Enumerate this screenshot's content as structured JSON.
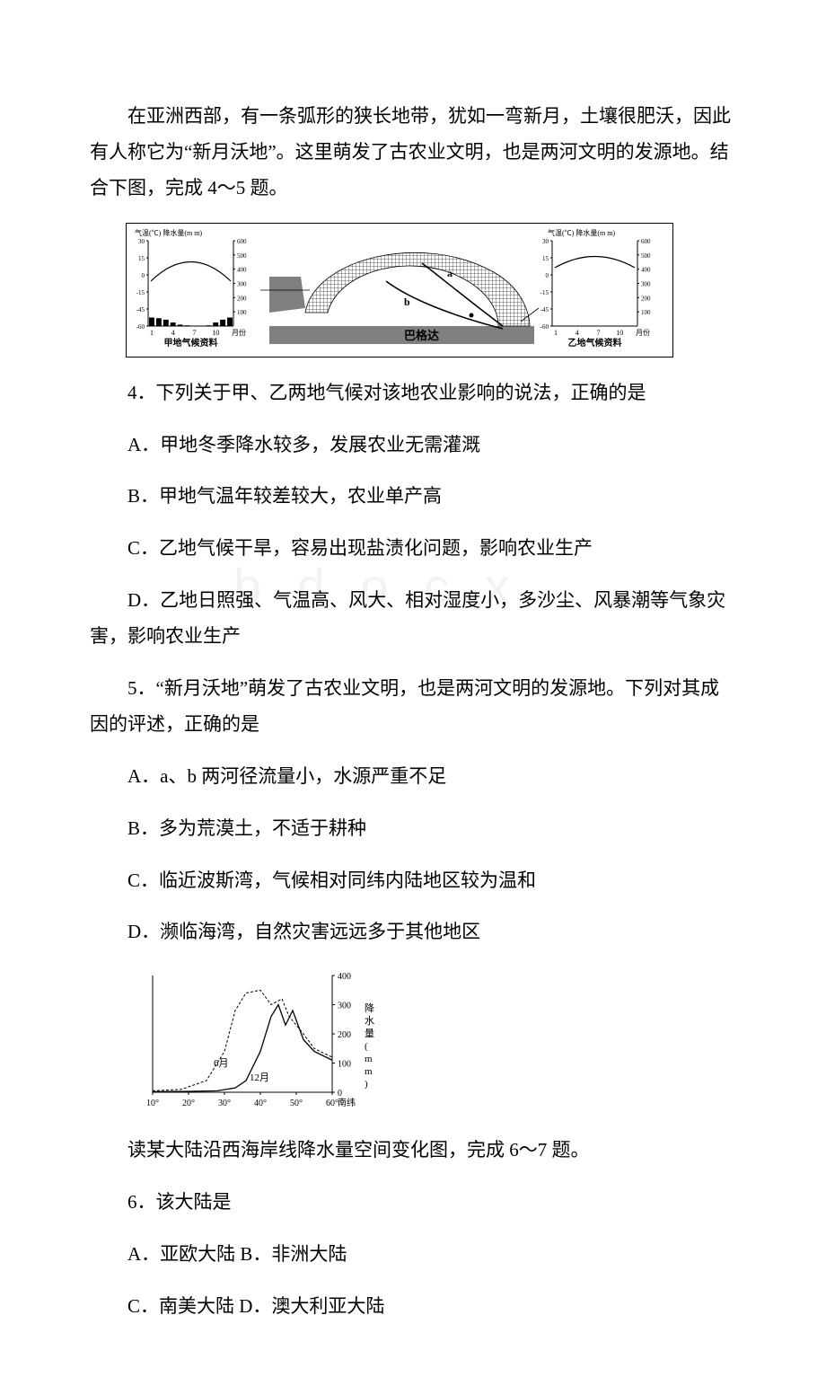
{
  "intro": "在亚洲西部，有一条弧形的狭长地带，犹如一弯新月，土壤很肥沃，因此有人称它为“新月沃地”。这里萌发了古农业文明，也是两河文明的发源地。结合下图，完成 4～5 题。",
  "fig1": {
    "left_panel": {
      "title_top_left": "气温(℃) 降水量(m m)",
      "temp_ticks": [
        "30",
        "15",
        "0",
        "-15",
        "-45",
        "-60"
      ],
      "precip_ticks": [
        "600",
        "500",
        "400",
        "300",
        "200",
        "100"
      ],
      "x_ticks": [
        "1",
        "4",
        "7",
        "10"
      ],
      "x_unit": "月份",
      "caption": "甲地气候资料",
      "bars": [
        60,
        55,
        45,
        25,
        10,
        5,
        2,
        3,
        5,
        25,
        45,
        60
      ],
      "axis_color": "#000000",
      "bar_color": "#000000"
    },
    "right_panel": {
      "title_top_left": "气温(℃) 降水量(m m)",
      "temp_ticks": [
        "30",
        "15",
        "0",
        "-15",
        "-45",
        "-60"
      ],
      "precip_ticks": [
        "600",
        "500",
        "400",
        "300",
        "200",
        "100"
      ],
      "x_ticks": [
        "1",
        "4",
        "7",
        "10"
      ],
      "x_unit": "月份",
      "caption": "乙地气候资料",
      "axis_color": "#000000"
    },
    "map": {
      "river_labels": [
        "a",
        "b"
      ],
      "city": "巴格达",
      "sea_color": "#808080",
      "band_color": "#222222",
      "line_color": "#000000"
    },
    "border_color": "#000000",
    "bg": "#ffffff"
  },
  "q4": {
    "stem": "4．下列关于甲、乙两地气候对该地农业影响的说法，正确的是",
    "A": "A．甲地冬季降水较多，发展农业无需灌溉",
    "B": "B．甲地气温年较差较大，农业单产高",
    "C": "C．乙地气候干旱，容易出现盐渍化问题，影响农业生产",
    "D": "D．乙地日照强、气温高、风大、相对湿度小，多沙尘、风暴潮等气象灾害，影响农业生产"
  },
  "q5": {
    "stem": "5．“新月沃地”萌发了古农业文明，也是两河文明的发源地。下列对其成因的评述，正确的是",
    "A": "A．a、b 两河径流量小，水源严重不足",
    "B": "B．多为荒漠土，不适于耕种",
    "C": "C．临近波斯湾，气候相对同纬内陆地区较为温和",
    "D": "D．濒临海湾，自然灾害远远多于其他地区"
  },
  "fig2": {
    "y_ticks": [
      "400",
      "300",
      "200",
      "100",
      "0"
    ],
    "y_label": "降水量(mm)",
    "x_ticks": [
      "10°",
      "20°",
      "30°",
      "40°",
      "50°",
      "60°"
    ],
    "x_unit": "南纬",
    "labels": {
      "jun": "6月",
      "dec": "12月"
    },
    "axis_color": "#000000",
    "dashed_color": "#000000",
    "solid_color": "#000000"
  },
  "intro2": "读某大陆沿西海岸线降水量空间变化图，完成 6～7 题。",
  "q6": {
    "stem": "6．该大陆是",
    "AB": "A．亚欧大陆 B．非洲大陆",
    "CD": "C．南美大陆 D．澳大利亚大陆"
  }
}
